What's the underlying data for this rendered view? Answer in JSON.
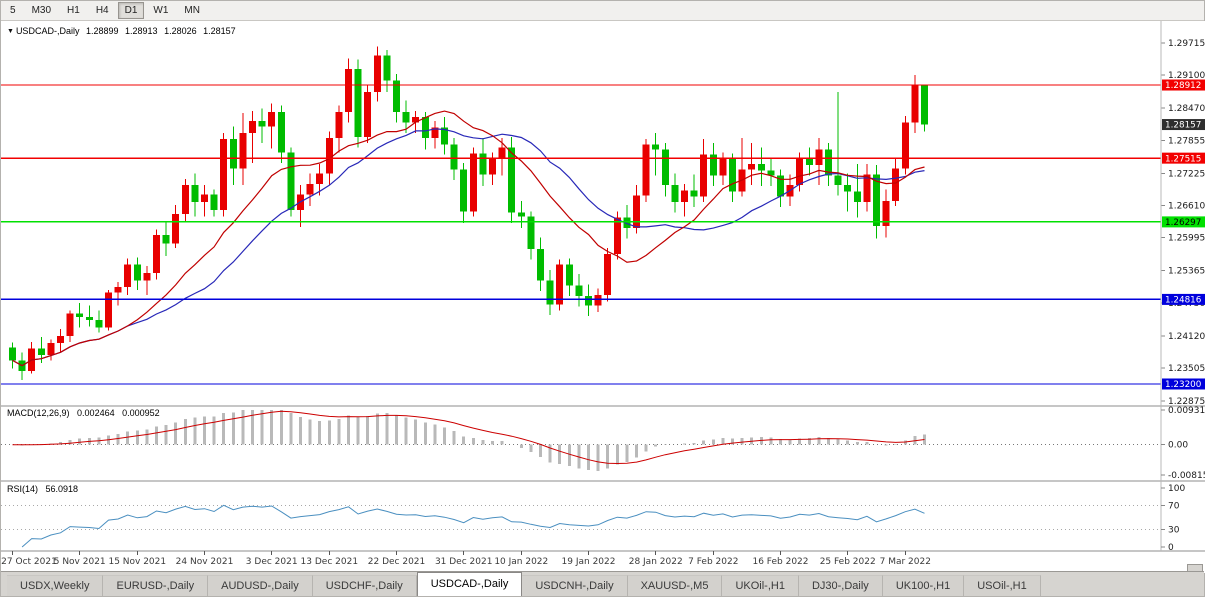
{
  "toolbar": {
    "timeframes": [
      {
        "label": "5",
        "active": false
      },
      {
        "label": "M30",
        "active": false
      },
      {
        "label": "H1",
        "active": false
      },
      {
        "label": "H4",
        "active": false
      },
      {
        "label": "D1",
        "active": true
      },
      {
        "label": "W1",
        "active": false
      },
      {
        "label": "MN",
        "active": false
      }
    ]
  },
  "chart_header": {
    "dropdown_icon": "▼",
    "symbol": "USDCAD-,Daily",
    "open": "1.28899",
    "high": "1.28913",
    "low": "1.28026",
    "close": "1.28157"
  },
  "price_axis": {
    "labels": [
      "1.29715",
      "1.29100",
      "1.28470",
      "1.27855",
      "1.27225",
      "1.26610",
      "1.25995",
      "1.25365",
      "1.24750",
      "1.24120",
      "1.23505",
      "1.22875"
    ]
  },
  "levels": {
    "hlines": [
      {
        "price": 1.28912,
        "label": "1.28912",
        "color": "#f20000",
        "text_color": "#ffffff"
      },
      {
        "price": 1.27515,
        "label": "1.27515",
        "color": "#f20000",
        "text_color": "#ffffff"
      },
      {
        "price": 1.26297,
        "label": "1.26297",
        "color": "#00e000",
        "text_color": "#000000"
      },
      {
        "price": 1.24816,
        "label": "1.24816",
        "color": "#0000dc",
        "text_color": "#ffffff"
      },
      {
        "price": 1.232,
        "label": "1.23200",
        "color": "#0000dc",
        "text_color": "#ffffff"
      }
    ],
    "current_price": {
      "price": 1.28157,
      "label": "1.28157",
      "color": "#2e2e2e",
      "text_color": "#ffffff"
    }
  },
  "macd": {
    "name": "MACD(12,26,9)",
    "main_value": "0.002464",
    "signal_value": "0.000952",
    "axis": [
      {
        "v": 0.00931,
        "label": "0.00931"
      },
      {
        "v": 0,
        "label": "0.00"
      },
      {
        "v": -0.00815,
        "label": "-0.00815"
      }
    ]
  },
  "rsi": {
    "name": "RSI(14)",
    "value": "56.0918",
    "period": 14,
    "levels": [
      70,
      30
    ],
    "axis": [
      {
        "v": 100,
        "label": "100"
      },
      {
        "v": 70,
        "label": "70"
      },
      {
        "v": 30,
        "label": "30"
      },
      {
        "v": 0,
        "label": "0"
      }
    ]
  },
  "date_axis": [
    {
      "i": 0,
      "label": "27 Oct 2021"
    },
    {
      "i": 7,
      "label": "5 Nov 2021"
    },
    {
      "i": 13,
      "label": "15 Nov 2021"
    },
    {
      "i": 20,
      "label": "24 Nov 2021"
    },
    {
      "i": 27,
      "label": "3 Dec 2021"
    },
    {
      "i": 33,
      "label": "13 Dec 2021"
    },
    {
      "i": 40,
      "label": "22 Dec 2021"
    },
    {
      "i": 47,
      "label": "31 Dec 2021"
    },
    {
      "i": 53,
      "label": "10 Jan 2022"
    },
    {
      "i": 60,
      "label": "19 Jan 2022"
    },
    {
      "i": 67,
      "label": "28 Jan 2022"
    },
    {
      "i": 73,
      "label": "7 Feb 2022"
    },
    {
      "i": 80,
      "label": "16 Feb 2022"
    },
    {
      "i": 87,
      "label": "25 Feb 2022"
    },
    {
      "i": 93,
      "label": "7 Mar 2022"
    }
  ],
  "tabs": [
    {
      "label": "USDX,Weekly",
      "active": false
    },
    {
      "label": "EURUSD-,Daily",
      "active": false
    },
    {
      "label": "AUDUSD-,Daily",
      "active": false
    },
    {
      "label": "USDCHF-,Daily",
      "active": false
    },
    {
      "label": "USDCAD-,Daily",
      "active": true
    },
    {
      "label": "USDCNH-,Daily",
      "active": false
    },
    {
      "label": "XAUUSD-,M5",
      "active": false
    },
    {
      "label": "UKOil-,H1",
      "active": false
    },
    {
      "label": "DJ30-,Daily",
      "active": false
    },
    {
      "label": "UK100-,H1",
      "active": false
    },
    {
      "label": "USOil-,H1",
      "active": false
    }
  ],
  "chart_data": {
    "type": "candlestick",
    "symbol": "USDCAD",
    "timeframe": "Daily",
    "price_range": [
      1.22875,
      1.29715
    ],
    "up_color": "#e80000",
    "down_color": "#00bc00",
    "ma_fast": {
      "period": 13,
      "color": "#c00000"
    },
    "ma_slow": {
      "period": 21,
      "color": "#2828b8"
    },
    "macd_histogram_color": "#b9b9b9",
    "macd_signal_color": "#cc0000",
    "rsi_color": "#4a8fc0",
    "candles_ohlc": [
      [
        1.239,
        1.2399,
        1.235,
        1.2365
      ],
      [
        1.2365,
        1.238,
        1.2328,
        1.2345
      ],
      [
        1.2345,
        1.24,
        1.234,
        1.2388
      ],
      [
        1.2388,
        1.241,
        1.236,
        1.2375
      ],
      [
        1.2375,
        1.2405,
        1.2365,
        1.2398
      ],
      [
        1.2398,
        1.2425,
        1.238,
        1.2412
      ],
      [
        1.2412,
        1.246,
        1.24,
        1.2455
      ],
      [
        1.2455,
        1.2475,
        1.2428,
        1.2448
      ],
      [
        1.2448,
        1.247,
        1.243,
        1.2442
      ],
      [
        1.2442,
        1.246,
        1.2418,
        1.2428
      ],
      [
        1.2428,
        1.25,
        1.2422,
        1.2495
      ],
      [
        1.2495,
        1.2515,
        1.247,
        1.2505
      ],
      [
        1.2505,
        1.256,
        1.249,
        1.2548
      ],
      [
        1.2548,
        1.2562,
        1.25,
        1.2518
      ],
      [
        1.2518,
        1.2545,
        1.249,
        1.2532
      ],
      [
        1.2532,
        1.2615,
        1.252,
        1.2605
      ],
      [
        1.2605,
        1.263,
        1.2565,
        1.2588
      ],
      [
        1.2588,
        1.2662,
        1.258,
        1.2645
      ],
      [
        1.2645,
        1.2712,
        1.263,
        1.27
      ],
      [
        1.27,
        1.2722,
        1.264,
        1.2668
      ],
      [
        1.2668,
        1.27,
        1.264,
        1.2682
      ],
      [
        1.2682,
        1.2692,
        1.264,
        1.2652
      ],
      [
        1.2652,
        1.28,
        1.264,
        1.2788
      ],
      [
        1.2788,
        1.2812,
        1.27,
        1.2732
      ],
      [
        1.2732,
        1.2838,
        1.27,
        1.28
      ],
      [
        1.28,
        1.2842,
        1.2742,
        1.2822
      ],
      [
        1.2822,
        1.2846,
        1.278,
        1.2812
      ],
      [
        1.2812,
        1.2856,
        1.277,
        1.284
      ],
      [
        1.284,
        1.2852,
        1.2742,
        1.2762
      ],
      [
        1.2762,
        1.2772,
        1.264,
        1.2652
      ],
      [
        1.2652,
        1.27,
        1.262,
        1.2682
      ],
      [
        1.2682,
        1.2722,
        1.266,
        1.2702
      ],
      [
        1.2702,
        1.274,
        1.268,
        1.2722
      ],
      [
        1.2722,
        1.2802,
        1.27,
        1.279
      ],
      [
        1.279,
        1.2852,
        1.2762,
        1.284
      ],
      [
        1.284,
        1.2942,
        1.282,
        1.2922
      ],
      [
        1.2922,
        1.294,
        1.2772,
        1.2792
      ],
      [
        1.2792,
        1.289,
        1.278,
        1.2878
      ],
      [
        1.2878,
        1.2965,
        1.286,
        1.2948
      ],
      [
        1.2948,
        1.2958,
        1.2878,
        1.29
      ],
      [
        1.29,
        1.2912,
        1.282,
        1.284
      ],
      [
        1.284,
        1.2862,
        1.28,
        1.282
      ],
      [
        1.282,
        1.2842,
        1.28,
        1.283
      ],
      [
        1.283,
        1.284,
        1.2768,
        1.279
      ],
      [
        1.279,
        1.2822,
        1.277,
        1.281
      ],
      [
        1.281,
        1.283,
        1.2758,
        1.2778
      ],
      [
        1.2778,
        1.279,
        1.271,
        1.273
      ],
      [
        1.273,
        1.2742,
        1.2628,
        1.265
      ],
      [
        1.265,
        1.2772,
        1.264,
        1.276
      ],
      [
        1.276,
        1.279,
        1.2698,
        1.272
      ],
      [
        1.272,
        1.2762,
        1.27,
        1.275
      ],
      [
        1.275,
        1.279,
        1.2718,
        1.2772
      ],
      [
        1.2772,
        1.2792,
        1.2628,
        1.2648
      ],
      [
        1.2648,
        1.267,
        1.2618,
        1.264
      ],
      [
        1.264,
        1.265,
        1.2558,
        1.2578
      ],
      [
        1.2578,
        1.26,
        1.2498,
        1.2518
      ],
      [
        1.2518,
        1.2538,
        1.2452,
        1.2472
      ],
      [
        1.2472,
        1.2558,
        1.246,
        1.2548
      ],
      [
        1.2548,
        1.256,
        1.2488,
        1.2508
      ],
      [
        1.2508,
        1.253,
        1.2468,
        1.2488
      ],
      [
        1.2488,
        1.251,
        1.245,
        1.247
      ],
      [
        1.247,
        1.2502,
        1.2458,
        1.249
      ],
      [
        1.249,
        1.258,
        1.2478,
        1.2568
      ],
      [
        1.2568,
        1.265,
        1.2558,
        1.2638
      ],
      [
        1.2638,
        1.2662,
        1.2598,
        1.2618
      ],
      [
        1.2618,
        1.27,
        1.2608,
        1.268
      ],
      [
        1.268,
        1.2788,
        1.2668,
        1.2778
      ],
      [
        1.2778,
        1.28,
        1.2718,
        1.2768
      ],
      [
        1.2768,
        1.278,
        1.2678,
        1.27
      ],
      [
        1.27,
        1.2722,
        1.2648,
        1.2668
      ],
      [
        1.2668,
        1.2702,
        1.264,
        1.269
      ],
      [
        1.269,
        1.272,
        1.2658,
        1.2678
      ],
      [
        1.2678,
        1.2788,
        1.2668,
        1.2758
      ],
      [
        1.2758,
        1.278,
        1.2698,
        1.2718
      ],
      [
        1.2718,
        1.2762,
        1.27,
        1.275
      ],
      [
        1.275,
        1.276,
        1.2668,
        1.2688
      ],
      [
        1.2688,
        1.279,
        1.2678,
        1.273
      ],
      [
        1.273,
        1.278,
        1.27,
        1.274
      ],
      [
        1.274,
        1.2772,
        1.2698,
        1.2728
      ],
      [
        1.2728,
        1.275,
        1.2698,
        1.2718
      ],
      [
        1.2718,
        1.273,
        1.2658,
        1.2678
      ],
      [
        1.2678,
        1.272,
        1.266,
        1.27
      ],
      [
        1.27,
        1.2762,
        1.2688,
        1.275
      ],
      [
        1.275,
        1.2772,
        1.2718,
        1.2738
      ],
      [
        1.2738,
        1.279,
        1.27,
        1.2768
      ],
      [
        1.2768,
        1.278,
        1.2698,
        1.2718
      ],
      [
        1.2718,
        1.2878,
        1.268,
        1.27
      ],
      [
        1.27,
        1.2722,
        1.265,
        1.2688
      ],
      [
        1.2688,
        1.274,
        1.2638,
        1.2668
      ],
      [
        1.2668,
        1.274,
        1.265,
        1.272
      ],
      [
        1.272,
        1.2738,
        1.2598,
        1.2622
      ],
      [
        1.2622,
        1.2692,
        1.26,
        1.267
      ],
      [
        1.267,
        1.2752,
        1.266,
        1.2732
      ],
      [
        1.2732,
        1.2832,
        1.272,
        1.282
      ],
      [
        1.282,
        1.291,
        1.28,
        1.289
      ],
      [
        1.28899,
        1.28913,
        1.28026,
        1.28157
      ]
    ]
  }
}
